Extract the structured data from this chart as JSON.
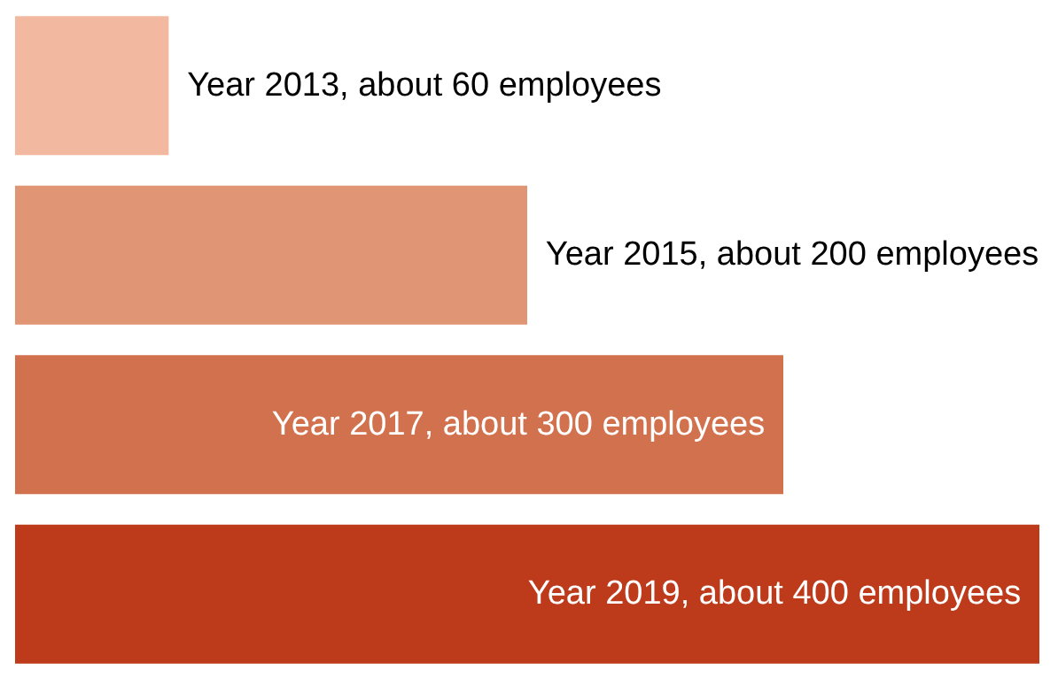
{
  "chart_data": {
    "type": "bar",
    "orientation": "horizontal",
    "categories": [
      null,
      null,
      null,
      null
    ],
    "values": [
      60,
      200,
      300,
      400
    ],
    "colors": [
      "#f2b8a0",
      "#e09674",
      "#d2714d",
      "#bd3a1a"
    ],
    "value_labels": [
      "Year 2013, about 60 employees",
      "Year 2015, about 200 employees",
      "Year 2017, about 300 employees",
      "Year 2019, about 400 employees"
    ],
    "grid": false,
    "tick_labels": false
  }
}
